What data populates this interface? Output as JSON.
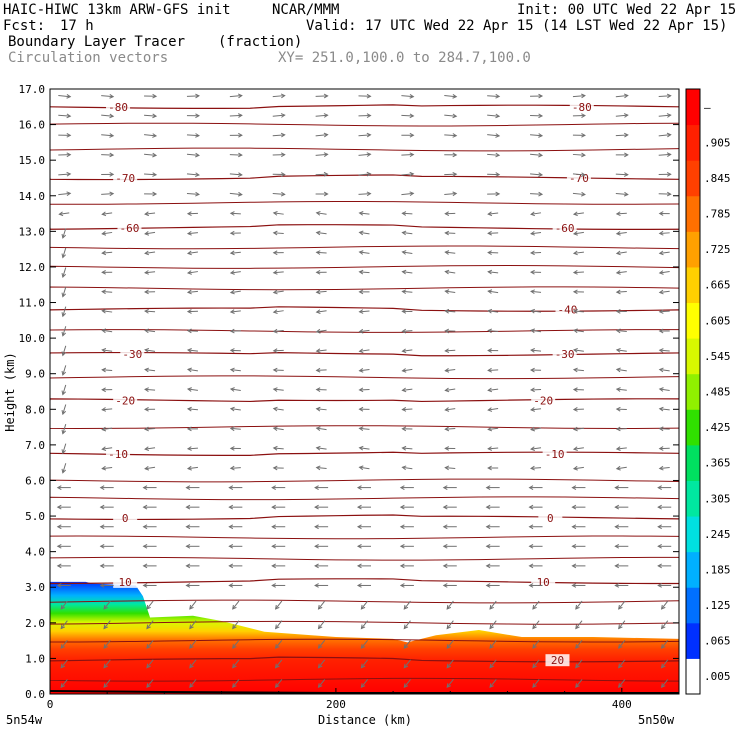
{
  "header": {
    "model": "HAIC-HIWC 13km ARW-GFS init",
    "org": "NCAR/MMM",
    "init": "Init: 00 UTC Wed 22 Apr 15",
    "fcst_label": "Fcst:",
    "fcst_value": "17 h",
    "valid": "Valid: 17 UTC Wed 22 Apr 15 (14 LST Wed 22 Apr 15)",
    "field": "Boundary Layer Tracer",
    "field_units": "(fraction)",
    "vectors": "Circulation vectors",
    "xy_range": "XY= 251.0,100.0 to 284.7,100.0"
  },
  "chart_data": {
    "type": "heatmap",
    "xlabel": "Distance (km)",
    "ylabel": "Height (km)",
    "xlim": [
      0,
      440
    ],
    "ylim": [
      0,
      17
    ],
    "x_ticks": [
      0,
      200,
      400
    ],
    "y_ticks": [
      "0.0",
      "1.0",
      "2.0",
      "3.0",
      "4.0",
      "5.0",
      "6.0",
      "7.0",
      "8.0",
      "9.0",
      "10.0",
      "11.0",
      "12.0",
      "13.0",
      "14.0",
      "15.0",
      "16.0",
      "17.0"
    ],
    "x_end_labels": {
      "left": "5n54w",
      "right": "5n50w"
    },
    "colorbar_labels": [
      ".005",
      ".065",
      ".125",
      ".185",
      ".245",
      ".305",
      ".365",
      ".425",
      ".485",
      ".545",
      ".605",
      ".665",
      ".725",
      ".785",
      ".845",
      ".905",
      "–"
    ],
    "colorbar_colors": [
      "#ffffff",
      "#0030ff",
      "#0070ff",
      "#00b0ff",
      "#00e0e0",
      "#00e8a0",
      "#00e060",
      "#30e000",
      "#90f000",
      "#d8f800",
      "#ffff00",
      "#ffd000",
      "#ffa000",
      "#ff7000",
      "#ff4000",
      "#ff2000",
      "#ff0000"
    ],
    "tracer_top_km": [
      [
        0,
        3.15
      ],
      [
        25,
        3.15
      ],
      [
        30,
        3.1
      ],
      [
        60,
        3.05
      ],
      [
        65,
        2.75
      ],
      [
        70,
        2.15
      ],
      [
        100,
        2.2
      ],
      [
        120,
        2.05
      ],
      [
        135,
        1.9
      ],
      [
        150,
        1.75
      ],
      [
        200,
        1.6
      ],
      [
        240,
        1.55
      ],
      [
        250,
        1.45
      ],
      [
        270,
        1.65
      ],
      [
        290,
        1.75
      ],
      [
        300,
        1.8
      ],
      [
        330,
        1.6
      ],
      [
        380,
        1.6
      ],
      [
        440,
        1.55
      ]
    ],
    "temperature_contour_levels": [
      {
        "label": "-80",
        "z": 16.5,
        "left_x": 35,
        "right_x": 372
      },
      {
        "label": "-70",
        "z": 14.5,
        "left_x": 40,
        "right_x": 370
      },
      {
        "label": "-60",
        "z": 13.1,
        "left_x": 43,
        "right_x": 360
      },
      {
        "label": "-40",
        "z": 10.8,
        "left_x": 0,
        "right_x": 362
      },
      {
        "label": "-30",
        "z": 9.55,
        "left_x": 45,
        "right_x": 360
      },
      {
        "label": "-20",
        "z": 8.25,
        "left_x": 40,
        "right_x": 345
      },
      {
        "label": "-10",
        "z": 6.75,
        "left_x": 35,
        "right_x": 353
      },
      {
        "label": "0",
        "z": 4.95,
        "left_x": 40,
        "right_x": 350
      },
      {
        "label": "10",
        "z": 3.15,
        "left_x": 40,
        "right_x": 345
      },
      {
        "label": "20",
        "z": 0.95,
        "left_x": 0,
        "right_x": 355
      }
    ]
  }
}
